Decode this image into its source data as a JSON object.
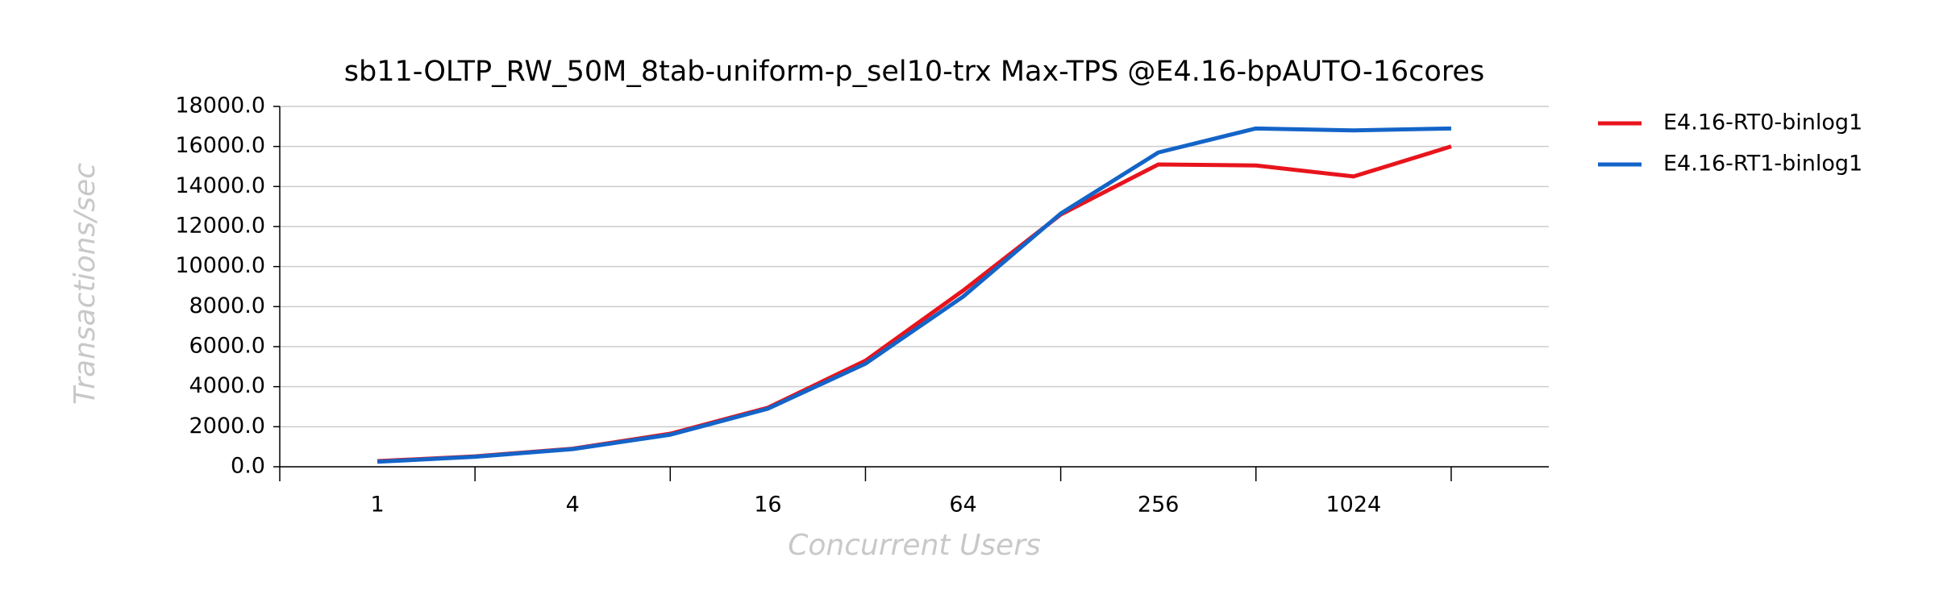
{
  "chart_data": {
    "type": "line",
    "title": "sb11-OLTP_RW_50M_8tab-uniform-p_sel10-trx Max-TPS @E4.16-bpAUTO-16cores",
    "x_label": "Concurrent Users",
    "y_label": "Transactions/sec",
    "categories": [
      "1",
      null,
      "4",
      null,
      "16",
      null,
      "64",
      null,
      "256",
      null,
      "1024",
      null
    ],
    "series": [
      {
        "name": "E4.16-RT0-binlog1",
        "color": "#e8141c",
        "values": [
          280,
          520,
          900,
          1650,
          2950,
          5300,
          8800,
          12600,
          15100,
          15050,
          14500,
          16000
        ]
      },
      {
        "name": "E4.16-RT1-binlog1",
        "color": "#1464c8",
        "values": [
          250,
          500,
          880,
          1600,
          2900,
          5150,
          8500,
          12650,
          15700,
          16900,
          16800,
          16900
        ]
      }
    ],
    "ylim": [
      0,
      18000
    ],
    "yticks": [
      {
        "value": 0,
        "label": "0.0"
      },
      {
        "value": 2000,
        "label": "2000.0"
      },
      {
        "value": 4000,
        "label": "4000.0"
      },
      {
        "value": 6000,
        "label": "6000.0"
      },
      {
        "value": 8000,
        "label": "8000.0"
      },
      {
        "value": 10000,
        "label": "10000.0"
      },
      {
        "value": 12000,
        "label": "12000.0"
      },
      {
        "value": 14000,
        "label": "14000.0"
      },
      {
        "value": 16000,
        "label": "16000.0"
      },
      {
        "value": 18000,
        "label": "18000.0"
      }
    ],
    "grid": true,
    "legend": "right"
  }
}
